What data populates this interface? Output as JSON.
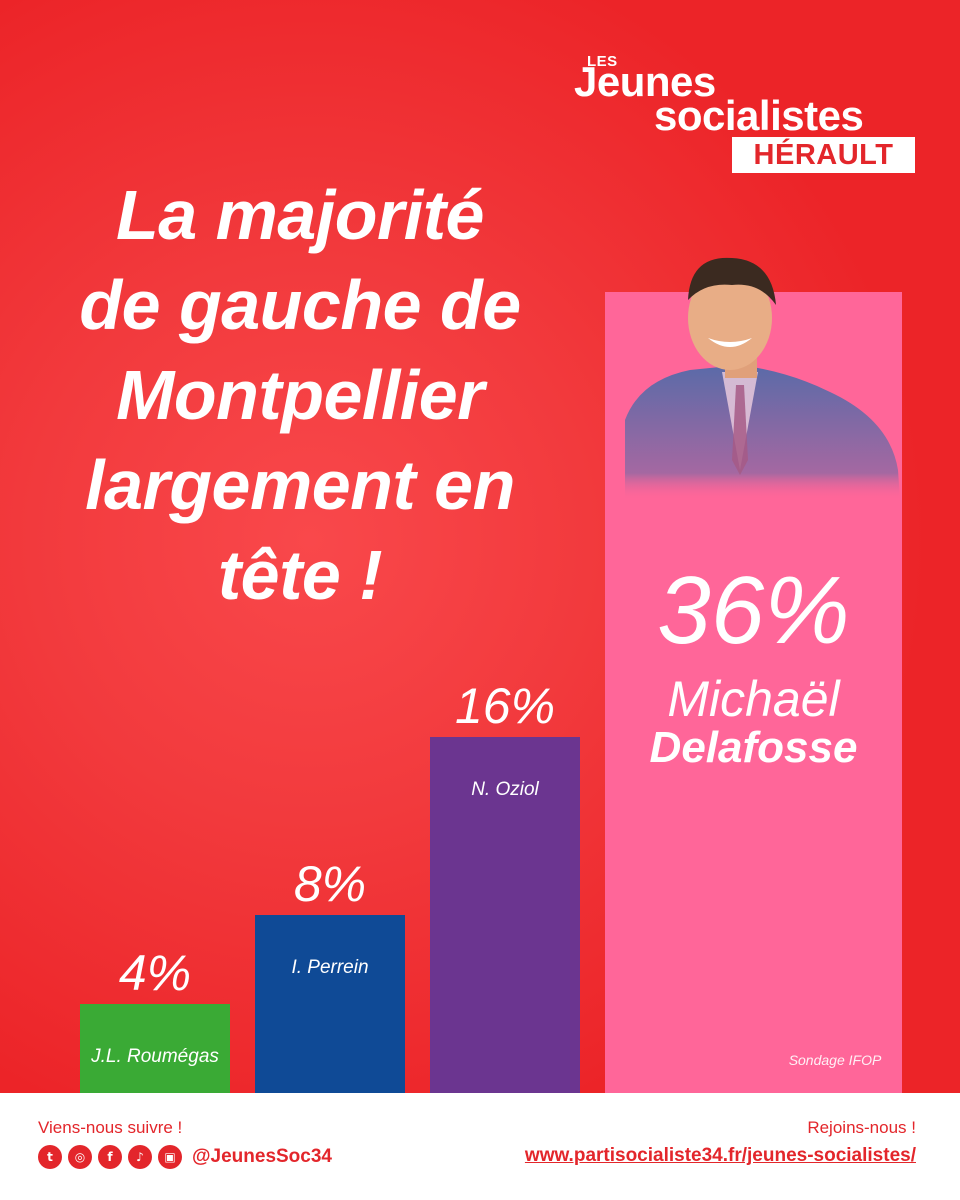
{
  "logo": {
    "les": "LES",
    "jeunes": "Jeunes",
    "socialistes": "socialistes",
    "region": "HÉRAULT"
  },
  "headline": {
    "lines": [
      "La majorité",
      "de gauche de",
      "Montpellier",
      "largement en",
      "tête !"
    ]
  },
  "chart_data": {
    "type": "bar",
    "categories": [
      "J.L. Roumégas",
      "I. Perrein",
      "N. Oziol",
      "Michaël Delafosse"
    ],
    "values": [
      4,
      8,
      16,
      36
    ],
    "value_labels": [
      "4%",
      "8%",
      "16%",
      "36%"
    ],
    "colors": [
      "#3aaa35",
      "#0f4a96",
      "#6b3590",
      "#ff6699"
    ],
    "featured": {
      "first_name": "Michaël",
      "last_name": "Delafosse"
    },
    "source": "Sondage IFOP",
    "title": "",
    "xlabel": "",
    "ylabel": "",
    "ylim": [
      0,
      36
    ],
    "grid": false,
    "legend": "none"
  },
  "footer": {
    "follow_label": "Viens-nous suivre !",
    "social_icons": [
      "twitter-icon",
      "instagram-icon",
      "facebook-icon",
      "tiktok-icon",
      "twitch-icon"
    ],
    "handle": "@JeunesSoc34",
    "join_label": "Rejoins-nous !",
    "site": "www.partisocialiste34.fr/jeunes-socialistes/"
  },
  "colors": {
    "background": "#ee2a2e",
    "accent_red": "#e3262b",
    "white": "#ffffff"
  }
}
